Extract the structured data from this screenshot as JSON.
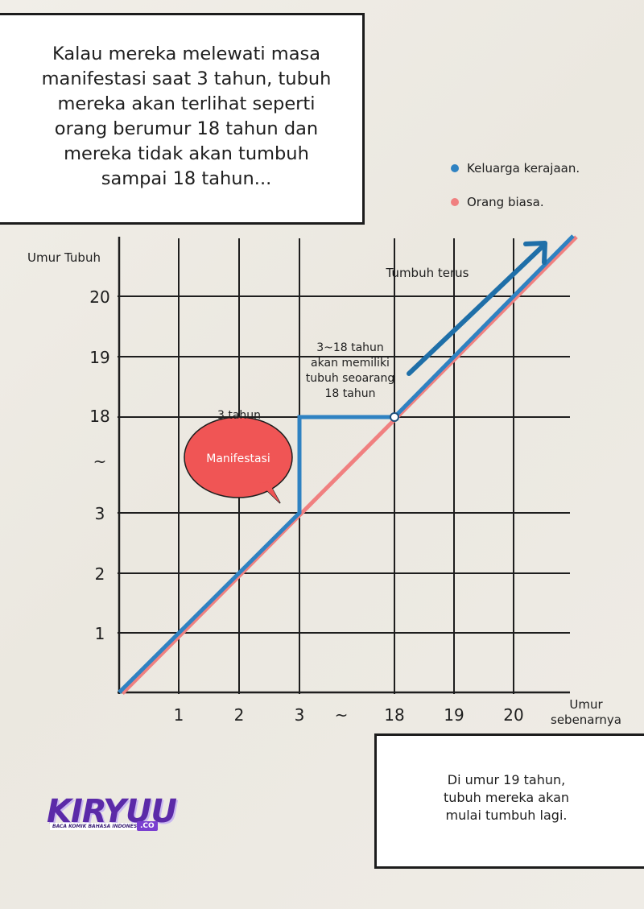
{
  "caption_top": "Kalau mereka melewati masa\nmanifestasi saat 3 tahun, tubuh\nmereka akan terlihat seperti\norang berumur 18 tahun dan\nmereka tidak akan tumbuh\nsampai 18 tahun...",
  "caption_bottom": "Di umur 19 tahun,\ntubuh mereka akan\nmulai tumbuh lagi.",
  "logo": {
    "main": "KIRYUU",
    "tagline": "BACA KOMIK BAHASA INDONESIA",
    "suffix": ".CO"
  },
  "chart_data": {
    "type": "line",
    "ylabel": "Umur Tubuh",
    "xlabel": "Umur\nsebenarnya",
    "x_ticks": [
      "1",
      "2",
      "3",
      "~",
      "18",
      "19",
      "20"
    ],
    "y_ticks": [
      "1",
      "2",
      "3",
      "~",
      "18",
      "19",
      "20"
    ],
    "legend": {
      "placement": "top-right",
      "items": [
        {
          "label": "Keluarga kerajaan.",
          "color": "#2f82c2"
        },
        {
          "label": "Orang biasa.",
          "color": "#f08080"
        }
      ]
    },
    "series": [
      {
        "name": "Keluarga kerajaan.",
        "color": "#2f82c2",
        "points": [
          [
            0,
            0
          ],
          [
            3,
            3
          ],
          [
            3,
            18
          ],
          [
            18,
            18
          ],
          [
            21,
            21
          ]
        ]
      },
      {
        "name": "Orang biasa.",
        "color": "#f08080",
        "points": [
          [
            0,
            0
          ],
          [
            21,
            21
          ]
        ]
      }
    ],
    "annotations": {
      "manifest_bubble": "Manifestasi",
      "three_years": "3 tahun",
      "range_note": "3~18 tahun\nakan memiliki\ntubuh seoarang\n18 tahun",
      "keep_growing": "Tumbuh terus"
    },
    "grid": true
  }
}
